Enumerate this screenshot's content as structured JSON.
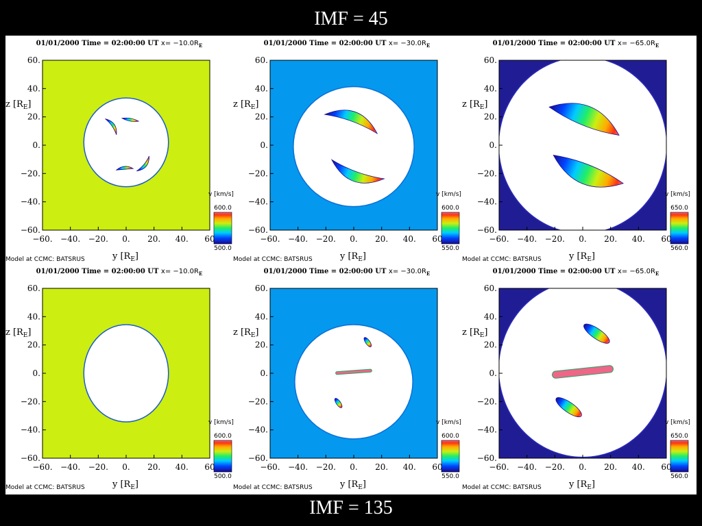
{
  "slide": {
    "title_top": "IMF = 45",
    "title_bottom": "IMF = 135"
  },
  "colors": {
    "yellow_green": "#ccee11",
    "sky_blue": "#0499ee",
    "dark_navy": "#1c1a8e",
    "void": "#ffffff"
  },
  "chart_data": [
    {
      "type": "heatmap",
      "row": "IMF = 45",
      "date": "01/01/2000",
      "time_label": "Time = 02:00:00 UT",
      "position_label": "x= −10.0R",
      "position_sub": "E",
      "credit": "Model at CCMC: BATSRUS",
      "xlabel": "y [R",
      "ylabel": "z [R",
      "label_sub": "E",
      "x_ticks": [
        "−60.",
        "−40.",
        "−20.",
        "0.",
        "20.",
        "40.",
        "60"
      ],
      "y_ticks": [
        "60.",
        "40.",
        "20.",
        "0.",
        "−20.",
        "−40.",
        "−60."
      ],
      "xlim": [
        -60,
        60
      ],
      "ylim": [
        -60,
        60
      ],
      "colorbar": {
        "label": "v [km/s]",
        "max": "600.0",
        "min": "500.0"
      },
      "background": "yellow_green",
      "void": {
        "cx": 0,
        "cy": 2,
        "rx": 30,
        "ry": 31,
        "rot": 0
      },
      "features": [
        {
          "id": "crescent-upper-left",
          "shape": "crescent",
          "cx": -11,
          "cy": 13,
          "len": 14,
          "width": 2,
          "rot": -55,
          "bend": 3
        },
        {
          "id": "crescent-upper-right",
          "shape": "crescent",
          "cx": 3,
          "cy": 18,
          "len": 12,
          "width": 2,
          "rot": -10,
          "bend": -1
        },
        {
          "id": "crescent-lower-left",
          "shape": "crescent",
          "cx": -1,
          "cy": -17,
          "len": 12,
          "width": 2,
          "rot": 5,
          "bend": 2
        },
        {
          "id": "crescent-lower-right",
          "shape": "crescent",
          "cx": 12,
          "cy": -13,
          "len": 14,
          "width": 2,
          "rot": 50,
          "bend": -3
        }
      ]
    },
    {
      "type": "heatmap",
      "row": "IMF = 45",
      "date": "01/01/2000",
      "time_label": "Time = 02:00:00 UT",
      "position_label": "x= −30.0R",
      "position_sub": "E",
      "credit": "Model at CCMC: BATSRUS",
      "xlabel": "y [R",
      "ylabel": "z [R",
      "label_sub": "E",
      "x_ticks": [
        "−60.",
        "−40.",
        "−20.",
        "0.",
        "20.",
        "40.",
        "60"
      ],
      "y_ticks": [
        "60.",
        "40.",
        "20.",
        "0.",
        "−20.",
        "−40.",
        "−60."
      ],
      "xlim": [
        -60,
        60
      ],
      "ylim": [
        -60,
        60
      ],
      "colorbar": {
        "label": "v [km/s]",
        "max": "600.0",
        "min": "550.0"
      },
      "background": "sky_blue",
      "void": {
        "cx": 0,
        "cy": -1,
        "rx": 43,
        "ry": 42,
        "rot": 0
      },
      "features": [
        {
          "id": "arc-upper",
          "shape": "crescent",
          "cx": -2,
          "cy": 15,
          "len": 40,
          "width": 7,
          "rot": -20,
          "bend": 9
        },
        {
          "id": "arc-lower",
          "shape": "crescent",
          "cx": 3,
          "cy": -17,
          "len": 40,
          "width": 7,
          "rot": -20,
          "bend": -9
        }
      ]
    },
    {
      "type": "heatmap",
      "row": "IMF = 45",
      "date": "01/01/2000",
      "time_label": "Time = 02:00:00 UT",
      "position_label": "x= −65.0R",
      "position_sub": "E",
      "credit": "Model at CCMC: BATSRUS",
      "xlabel": "y [R",
      "ylabel": "z [R",
      "label_sub": "E",
      "x_ticks": [
        "−60.",
        "−40.",
        "−20.",
        "0.",
        "20.",
        "40.",
        "60"
      ],
      "y_ticks": [
        "60.",
        "40.",
        "20.",
        "0.",
        "−20.",
        "−40.",
        "−60."
      ],
      "xlim": [
        -60,
        60
      ],
      "ylim": [
        -60,
        60
      ],
      "colorbar": {
        "label": "v [km/s]",
        "max": "650.0",
        "min": "560.0"
      },
      "background": "dark_navy",
      "void": {
        "cx": 0,
        "cy": 0,
        "rx": 60,
        "ry": 62,
        "rot": 0
      },
      "features": [
        {
          "id": "arc-upper",
          "shape": "crescent",
          "cx": 1,
          "cy": 17,
          "len": 54,
          "width": 14,
          "rot": -22,
          "bend": 11
        },
        {
          "id": "arc-lower",
          "shape": "crescent",
          "cx": 4,
          "cy": -17,
          "len": 54,
          "width": 14,
          "rot": -22,
          "bend": -11
        }
      ]
    },
    {
      "type": "heatmap",
      "row": "IMF = 135",
      "date": "01/01/2000",
      "time_label": "Time = 02:00:00 UT",
      "position_label": "x= −10.0R",
      "position_sub": "E",
      "credit": "Model at CCMC: BATSRUS",
      "xlabel": "y [R",
      "ylabel": "z [R",
      "label_sub": "E",
      "x_ticks": [
        "−60.",
        "−40.",
        "−20.",
        "0.",
        "20.",
        "40.",
        "60"
      ],
      "y_ticks": [
        "60.",
        "40.",
        "20.",
        "0.",
        "−20.",
        "−40.",
        "−60."
      ],
      "xlim": [
        -60,
        60
      ],
      "ylim": [
        -60,
        60
      ],
      "colorbar": {
        "label": "v [km/s]",
        "max": "600.0",
        "min": "500.0"
      },
      "background": "yellow_green",
      "void": {
        "cx": 0,
        "cy": 0,
        "rx": 30,
        "ry": 34,
        "rot": 0
      },
      "features": []
    },
    {
      "type": "heatmap",
      "row": "IMF = 135",
      "date": "01/01/2000",
      "time_label": "Time = 02:00:00 UT",
      "position_label": "x= −30.0R",
      "position_sub": "E",
      "credit": "Model at CCMC: BATSRUS",
      "xlabel": "y [R",
      "ylabel": "z [R",
      "label_sub": "E",
      "x_ticks": [
        "−60.",
        "−40.",
        "−20.",
        "0.",
        "20.",
        "40.",
        "60"
      ],
      "y_ticks": [
        "60.",
        "40.",
        "20.",
        "0.",
        "−20.",
        "−40.",
        "−60."
      ],
      "xlim": [
        -60,
        60
      ],
      "ylim": [
        -60,
        60
      ],
      "colorbar": {
        "label": "v [km/s]",
        "max": "600.0",
        "min": "550.0"
      },
      "background": "sky_blue",
      "void": {
        "cx": 0,
        "cy": -6,
        "rx": 42,
        "ry": 40,
        "rot": 0
      },
      "features": [
        {
          "id": "sheet-center",
          "shape": "band",
          "cx": 0,
          "cy": 1,
          "len": 26,
          "width": 2,
          "rot": 4
        },
        {
          "id": "blob-upper",
          "shape": "blob",
          "cx": 10,
          "cy": 22,
          "len": 8,
          "width": 3,
          "rot": -55
        },
        {
          "id": "blob-lower",
          "shape": "blob",
          "cx": -11,
          "cy": -21,
          "len": 8,
          "width": 3,
          "rot": -55
        }
      ]
    },
    {
      "type": "heatmap",
      "row": "IMF = 135",
      "date": "01/01/2000",
      "time_label": "Time = 02:00:00 UT",
      "position_label": "x= −65.0R",
      "position_sub": "E",
      "credit": "Model at CCMC: BATSRUS",
      "xlabel": "y [R",
      "ylabel": "z [R",
      "label_sub": "E",
      "x_ticks": [
        "−60.",
        "−40.",
        "−20.",
        "0.",
        "20.",
        "40.",
        "60"
      ],
      "y_ticks": [
        "60.",
        "40.",
        "20.",
        "0.",
        "−20.",
        "−40.",
        "−60."
      ],
      "xlim": [
        -60,
        60
      ],
      "ylim": [
        -60,
        60
      ],
      "colorbar": {
        "label": "v [km/s]",
        "max": "650.0",
        "min": "560.0"
      },
      "background": "dark_navy",
      "void": {
        "cx": 0,
        "cy": 3,
        "rx": 60,
        "ry": 62,
        "rot": 0
      },
      "features": [
        {
          "id": "sheet-center",
          "shape": "band",
          "cx": 0,
          "cy": 1,
          "len": 44,
          "width": 5,
          "rot": 6
        },
        {
          "id": "blob-upper",
          "shape": "blob",
          "cx": 10,
          "cy": 28,
          "len": 22,
          "width": 7,
          "rot": -35
        },
        {
          "id": "blob-lower",
          "shape": "blob",
          "cx": -10,
          "cy": -24,
          "len": 22,
          "width": 7,
          "rot": -35
        }
      ]
    }
  ]
}
